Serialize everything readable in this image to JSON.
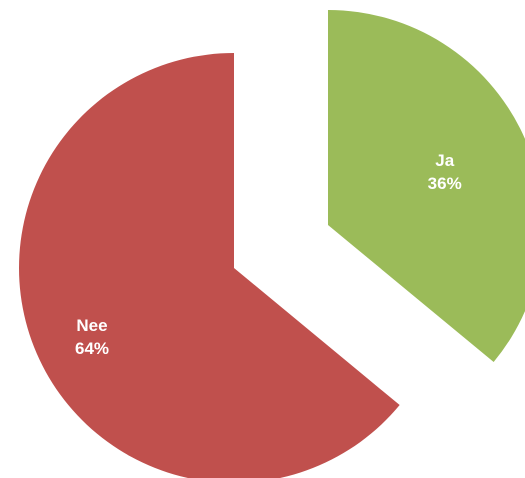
{
  "chart_data": {
    "type": "pie",
    "exploded": true,
    "start_angle_deg": 0,
    "direction": "clockwise",
    "slices": [
      {
        "label": "Ja",
        "value": 36,
        "display": "36%",
        "color": "#9bbb59"
      },
      {
        "label": "Nee",
        "value": 64,
        "display": "64%",
        "color": "#c0504d"
      }
    ]
  }
}
